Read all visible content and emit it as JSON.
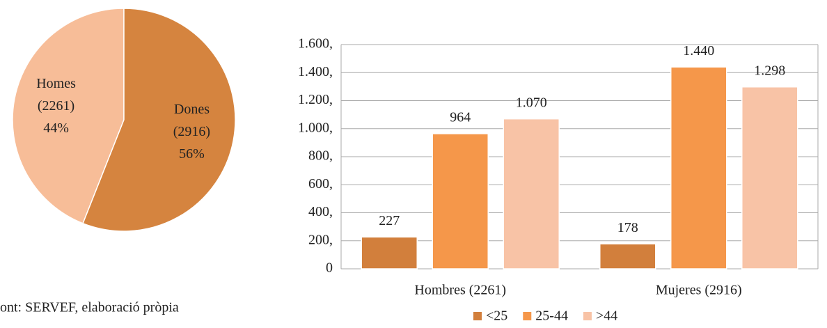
{
  "chart_data": [
    {
      "type": "pie",
      "categories": [
        "Homes",
        "Dones"
      ],
      "counts_labels": [
        "(2261)",
        "(2916)"
      ],
      "values": [
        44,
        56
      ],
      "value_labels": [
        "44%",
        "56%"
      ],
      "colors": [
        "#f7bd98",
        "#d5843f"
      ]
    },
    {
      "type": "bar",
      "categories": [
        "Hombres (2261)",
        "Mujeres (2916)"
      ],
      "series": [
        {
          "name": "<25",
          "color": "#d27f3c",
          "values": [
            227,
            178
          ],
          "value_labels": [
            "227",
            "178"
          ]
        },
        {
          "name": "25-44",
          "color": "#f5974a",
          "values": [
            964,
            1440
          ],
          "value_labels": [
            "964",
            "1.440"
          ]
        },
        {
          "name": ">44",
          "color": "#f8c3a6",
          "values": [
            1070,
            1298
          ],
          "value_labels": [
            "1.070",
            "1.298"
          ]
        }
      ],
      "ylim": [
        0,
        1600
      ],
      "yticks": [
        0,
        {
          "value": 200,
          "label": "200,"
        },
        {
          "value": 400,
          "label": "400,"
        },
        {
          "value": 600,
          "label": "600,"
        },
        {
          "value": 800,
          "label": "800,"
        },
        {
          "value": 1000,
          "label": "1.000,"
        },
        {
          "value": 1200,
          "label": "1.200,"
        },
        {
          "value": 1400,
          "label": "1.400,"
        },
        {
          "value": 1600,
          "label": "1.600,"
        }
      ],
      "grid": true,
      "legend": "bottom"
    }
  ],
  "source": "ont: SERVEF, elaboració pròpia"
}
